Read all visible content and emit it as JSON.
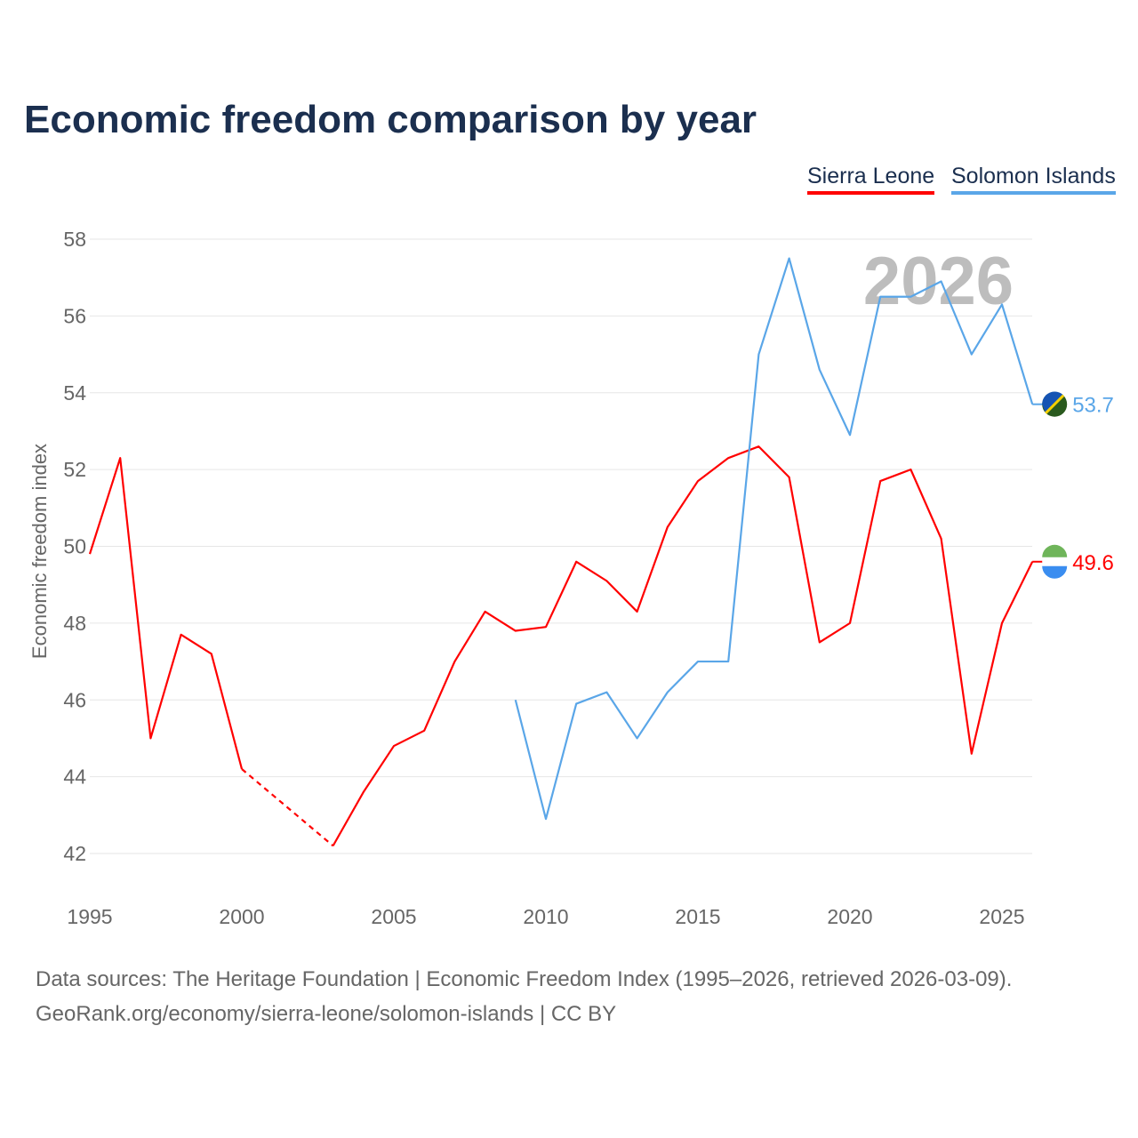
{
  "chart_data": {
    "type": "line",
    "title": "Economic freedom comparison by year",
    "xlabel": "",
    "ylabel": "Economic freedom index",
    "xlim": [
      1995,
      2026
    ],
    "ylim": [
      42,
      58
    ],
    "yticks": [
      42,
      44,
      46,
      48,
      50,
      52,
      54,
      56,
      58
    ],
    "xticks": [
      1995,
      2000,
      2005,
      2010,
      2015,
      2020,
      2025
    ],
    "watermark_year": "2026",
    "legend_position": "top-right",
    "series": [
      {
        "name": "Sierra Leone",
        "color": "#ff0000",
        "end_label": "49.6",
        "x": [
          1995,
          1996,
          1997,
          1998,
          1999,
          2000,
          2003,
          2004,
          2005,
          2006,
          2007,
          2008,
          2009,
          2010,
          2011,
          2012,
          2013,
          2014,
          2015,
          2016,
          2017,
          2018,
          2019,
          2020,
          2021,
          2022,
          2023,
          2024,
          2025,
          2026
        ],
        "y": [
          49.8,
          52.3,
          45.0,
          47.7,
          47.2,
          44.2,
          42.2,
          43.6,
          44.8,
          45.2,
          47.0,
          48.3,
          47.8,
          47.9,
          49.6,
          49.1,
          48.3,
          50.5,
          51.7,
          52.3,
          52.6,
          51.8,
          47.5,
          48.0,
          51.7,
          52.0,
          50.2,
          44.6,
          48.0,
          49.6
        ],
        "gaps": [
          [
            2000,
            2003
          ]
        ]
      },
      {
        "name": "Solomon Islands",
        "color": "#5aa6e8",
        "end_label": "53.7",
        "x": [
          2009,
          2010,
          2011,
          2012,
          2013,
          2014,
          2015,
          2016,
          2017,
          2018,
          2019,
          2020,
          2021,
          2022,
          2023,
          2024,
          2025,
          2026
        ],
        "y": [
          46.0,
          42.9,
          45.9,
          46.2,
          45.0,
          46.2,
          47.0,
          47.0,
          55.0,
          57.5,
          54.6,
          52.9,
          56.5,
          56.5,
          56.9,
          55.0,
          56.3,
          53.7
        ],
        "gaps": []
      }
    ]
  },
  "footer": {
    "line1": "Data sources: The Heritage Foundation | Economic Freedom Index (1995–2026, retrieved 2026-03-09).",
    "line2": "GeoRank.org/economy/sierra-leone/solomon-islands | CC BY"
  }
}
